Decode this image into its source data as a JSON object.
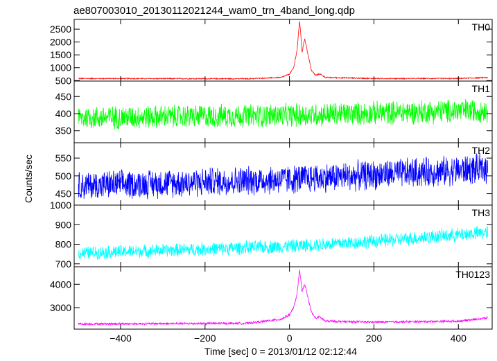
{
  "chart_data": {
    "type": "line",
    "title": "ae807003010_20130112021244_wam0_trn_4band_long.qdp",
    "xlabel": "Time [sec] 0 = 2013/01/12 02:12:44",
    "ylabel": "Counts/sec",
    "xlim": [
      -510,
      480
    ],
    "xticks": [
      -400,
      -200,
      0,
      200,
      400
    ],
    "x_range_data": [
      -500,
      470
    ],
    "panels": [
      {
        "name": "TH0",
        "color": "#ff0000",
        "ylim": [
          480,
          2880
        ],
        "yticks": [
          500,
          1000,
          1500,
          2000,
          2500
        ],
        "baseline": [
          [
            -500,
            580
          ],
          [
            -100,
            570
          ],
          [
            -20,
            620
          ],
          [
            0,
            750
          ],
          [
            10,
            1000
          ],
          [
            18,
            1700
          ],
          [
            24,
            2850
          ],
          [
            30,
            1600
          ],
          [
            36,
            2150
          ],
          [
            44,
            1500
          ],
          [
            52,
            900
          ],
          [
            62,
            700
          ],
          [
            72,
            760
          ],
          [
            85,
            620
          ],
          [
            200,
            580
          ],
          [
            400,
            580
          ],
          [
            470,
            620
          ]
        ],
        "noise": 25,
        "series": [
          {
            "x": [
              -500,
              -300,
              -100,
              -20,
              0,
              10,
              18,
              24,
              30,
              36,
              44,
              52,
              62,
              72,
              85,
              200,
              400,
              470
            ],
            "y": [
              580,
              575,
              570,
              620,
              750,
              1000,
              1700,
              2850,
              1600,
              2150,
              1500,
              900,
              700,
              760,
              620,
              580,
              580,
              620
            ]
          }
        ]
      },
      {
        "name": "TH1",
        "color": "#00ff00",
        "ylim": [
          315,
          495
        ],
        "yticks": [
          350,
          400,
          450
        ],
        "baseline": [
          [
            -500,
            388
          ],
          [
            0,
            395
          ],
          [
            470,
            410
          ]
        ],
        "noise": 38,
        "series": [
          {
            "x": [
              -500,
              0,
              470
            ],
            "y": [
              388,
              395,
              410
            ]
          }
        ]
      },
      {
        "name": "TH2",
        "color": "#0000ff",
        "ylim": [
          418,
          593
        ],
        "yticks": [
          450,
          500,
          550
        ],
        "baseline": [
          [
            -500,
            472
          ],
          [
            0,
            490
          ],
          [
            470,
            520
          ]
        ],
        "noise": 45,
        "series": [
          {
            "x": [
              -500,
              0,
              470
            ],
            "y": [
              472,
              490,
              520
            ]
          }
        ]
      },
      {
        "name": "TH3",
        "color": "#00ffff",
        "ylim": [
          685,
          1000
        ],
        "yticks": [
          700,
          800,
          900,
          1000
        ],
        "baseline": [
          [
            -500,
            755
          ],
          [
            -200,
            775
          ],
          [
            0,
            790
          ],
          [
            200,
            815
          ],
          [
            470,
            860
          ]
        ],
        "noise": 38,
        "series": [
          {
            "x": [
              -500,
              -200,
              0,
              200,
              470
            ],
            "y": [
              755,
              775,
              790,
              815,
              860
            ]
          }
        ]
      },
      {
        "name": "TH0123",
        "color": "#ff00ff",
        "ylim": [
          2080,
          4750
        ],
        "yticks": [
          3000,
          4000
        ],
        "baseline": [
          [
            -500,
            2300
          ],
          [
            -100,
            2330
          ],
          [
            -20,
            2500
          ],
          [
            0,
            2700
          ],
          [
            10,
            3000
          ],
          [
            18,
            3600
          ],
          [
            24,
            4600
          ],
          [
            30,
            3700
          ],
          [
            36,
            4000
          ],
          [
            44,
            3400
          ],
          [
            52,
            2800
          ],
          [
            62,
            2550
          ],
          [
            72,
            2600
          ],
          [
            85,
            2420
          ],
          [
            200,
            2380
          ],
          [
            400,
            2420
          ],
          [
            470,
            2560
          ]
        ],
        "noise": 55,
        "series": [
          {
            "x": [
              -500,
              -300,
              -100,
              -20,
              0,
              10,
              18,
              24,
              30,
              36,
              44,
              52,
              62,
              72,
              85,
              200,
              400,
              470
            ],
            "y": [
              2300,
              2310,
              2330,
              2500,
              2700,
              3000,
              3600,
              4600,
              3700,
              4000,
              3400,
              2800,
              2550,
              2600,
              2420,
              2380,
              2420,
              2560
            ]
          }
        ]
      }
    ]
  }
}
